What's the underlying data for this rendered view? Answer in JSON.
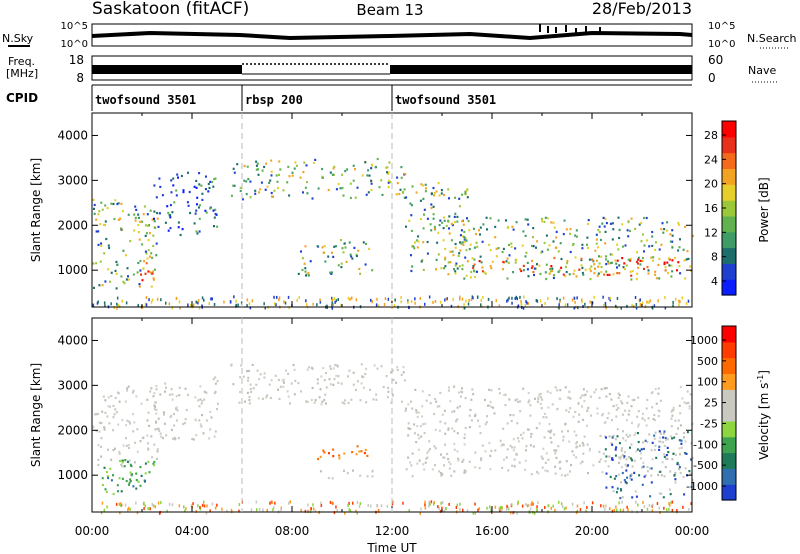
{
  "header": {
    "station": "Saskatoon (fitACF)",
    "beam": "Beam 13",
    "date": "28/Feb/2013"
  },
  "noise_panel": {
    "left_label": "N.Sky",
    "right_label": "N.Search",
    "left_ticks": [
      "10^5",
      "10^0"
    ],
    "right_ticks": [
      "10^5",
      "10^0"
    ]
  },
  "freq_panel": {
    "left_label_1": "Freq.",
    "left_label_2": "[MHz]",
    "right_label": "Nave",
    "left_ticks": [
      "18",
      "8"
    ],
    "right_ticks": [
      "60",
      "0"
    ]
  },
  "cpid_panel": {
    "label": "CPID",
    "segments": [
      {
        "name": "twofsound 3501",
        "start_hour": 0,
        "end_hour": 6
      },
      {
        "name": "rbsp 200",
        "start_hour": 6,
        "end_hour": 12
      },
      {
        "name": "twofsound 3501",
        "start_hour": 12,
        "end_hour": 24
      }
    ]
  },
  "chart_data": [
    {
      "type": "heatmap",
      "title": "",
      "xlabel": "",
      "ylabel": "Slant Range [km]",
      "xlim_hours": [
        0,
        24
      ],
      "ylim": [
        180,
        4500
      ],
      "yticks": [
        "1000",
        "2000",
        "3000",
        "4000"
      ],
      "colorbar": {
        "label": "Power [dB]",
        "ticks": [
          "4",
          "8",
          "12",
          "16",
          "20",
          "24",
          "28"
        ],
        "colors": [
          "#0a1eff",
          "#1f3fd0",
          "#1d6e6b",
          "#3f9c66",
          "#61b24e",
          "#9bc83a",
          "#e6cf2a",
          "#f3a323",
          "#f26a1a",
          "#e8301a",
          "#ff0000"
        ]
      },
      "regions": [
        {
          "t0": 0.0,
          "t1": 2.6,
          "r0": 600,
          "r1": 2600,
          "level": "mid"
        },
        {
          "t0": 1.8,
          "t1": 2.6,
          "r0": 650,
          "r1": 1300,
          "level": "high"
        },
        {
          "t0": 2.4,
          "t1": 5.0,
          "r0": 1800,
          "r1": 3200,
          "level": "low"
        },
        {
          "t0": 5.5,
          "t1": 12.5,
          "r0": 2600,
          "r1": 3500,
          "level": "mid"
        },
        {
          "t0": 8.2,
          "t1": 11.2,
          "r0": 900,
          "r1": 1700,
          "level": "mid"
        },
        {
          "t0": 12.5,
          "t1": 15.0,
          "r0": 1000,
          "r1": 3000,
          "level": "mid"
        },
        {
          "t0": 14.0,
          "t1": 24.0,
          "r0": 800,
          "r1": 2200,
          "level": "mid"
        },
        {
          "t0": 15.0,
          "t1": 23.5,
          "r0": 900,
          "r1": 1300,
          "level": "high"
        }
      ]
    },
    {
      "type": "heatmap",
      "title": "",
      "xlabel": "Time UT",
      "ylabel": "Slant Range [km]",
      "xlim_hours": [
        0,
        24
      ],
      "ylim": [
        180,
        4500
      ],
      "xticks": [
        "00:00",
        "04:00",
        "08:00",
        "12:00",
        "16:00",
        "20:00",
        "00:00"
      ],
      "yticks": [
        "1000",
        "2000",
        "3000",
        "4000"
      ],
      "colorbar": {
        "label": "Velocity [m s",
        "label_superscript": "-1",
        "label_close": "]",
        "ticks": [
          "1000",
          "500",
          "100",
          "25",
          "-25",
          "-100",
          "-500",
          "-1000"
        ],
        "colors": [
          "#1f3fd0",
          "#2f6fb0",
          "#1f7a5a",
          "#3ea34f",
          "#8dd63f",
          "#c9c9c1",
          "#c9c9c1",
          "#ff9b1f",
          "#ff6a00",
          "#ff3b00",
          "#ff0000"
        ]
      },
      "regions": [
        {
          "t0": 0.0,
          "t1": 2.6,
          "r0": 1200,
          "r1": 3000,
          "level": "gray"
        },
        {
          "t0": 0.3,
          "t1": 2.5,
          "r0": 600,
          "r1": 1400,
          "level": "green"
        },
        {
          "t0": 0.6,
          "t1": 2.3,
          "r0": 700,
          "r1": 1000,
          "level": "teal"
        },
        {
          "t0": 2.4,
          "t1": 5.0,
          "r0": 1800,
          "r1": 3200,
          "level": "gray"
        },
        {
          "t0": 5.5,
          "t1": 12.5,
          "r0": 2600,
          "r1": 3500,
          "level": "gray"
        },
        {
          "t0": 9.0,
          "t1": 11.0,
          "r0": 1300,
          "r1": 1700,
          "level": "orange"
        },
        {
          "t0": 8.8,
          "t1": 11.2,
          "r0": 950,
          "r1": 1150,
          "level": "gray"
        },
        {
          "t0": 12.5,
          "t1": 24.0,
          "r0": 1000,
          "r1": 3000,
          "level": "gray"
        },
        {
          "t0": 20.5,
          "t1": 24.0,
          "r0": 500,
          "r1": 2000,
          "level": "blue"
        }
      ]
    }
  ]
}
